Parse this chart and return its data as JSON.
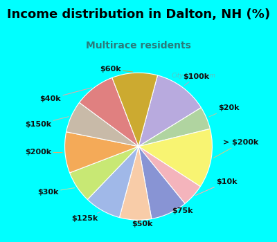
{
  "title": "Income distribution in Dalton, NH (%)",
  "subtitle": "Multirace residents",
  "background_top": "#00FFFF",
  "background_chart_color": "#e0f5ee",
  "labels": [
    "$100k",
    "$20k",
    "> $200k",
    "$10k",
    "$75k",
    "$50k",
    "$125k",
    "$30k",
    "$200k",
    "$150k",
    "$40k",
    "$60k"
  ],
  "values": [
    12,
    5,
    13,
    5,
    8,
    7,
    8,
    7,
    9,
    7,
    9,
    10
  ],
  "colors": [
    "#b8aade",
    "#b0d4a0",
    "#f8f472",
    "#f4b4bc",
    "#8894d4",
    "#f8cca8",
    "#a0b8e8",
    "#c8e874",
    "#f4aa58",
    "#c8baa8",
    "#e08080",
    "#ccaa30"
  ],
  "label_fontsize": 8,
  "title_fontsize": 13,
  "subtitle_fontsize": 10,
  "subtitle_color": "#2a7a7a",
  "startangle": 75,
  "label_color": "#111111",
  "line_colors": {
    "$100k": "#aaaacc",
    "$20k": "#aaccaa",
    "$75k": "#8888cc",
    "$50k": "#ddbb88",
    "> $200k": "#dddd88",
    "$10k": "#ffaaaa",
    "$125k": "#aabbdd",
    "$30k": "#bbddaa",
    "$200k": "#eeaa66",
    "$150k": "#ccbbaa",
    "$40k": "#ddaaaa",
    "$60k": "#bbaa44"
  }
}
